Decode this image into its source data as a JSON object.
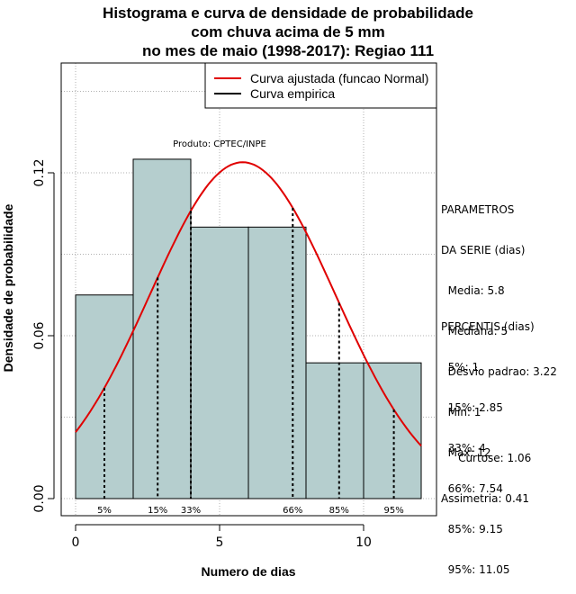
{
  "title_lines": [
    "Histograma e curva de densidade de probabilidade",
    "com chuva acima de 5 mm",
    "no mes de maio (1998-2017): Regiao 111"
  ],
  "legend": [
    "Curva ajustada (funcao Normal)",
    "Curva empirica"
  ],
  "product_label": "Produto: CPTEC/INPE",
  "params": {
    "header": [
      "PARAMETROS",
      "DA SERIE (dias)"
    ],
    "lines": [
      "  Media: 5.8",
      "  Mediana: 5",
      "  Desvio padrao: 3.22",
      "  Min: 1",
      "  Max: 12"
    ]
  },
  "percentis": {
    "header": "PERCENTIS (dias)",
    "lines": [
      "  5%: 1",
      "  15%: 2.85",
      "  33%: 4",
      "  66%: 7.54",
      "  85%: 9.15",
      "  95%: 11.05"
    ]
  },
  "shape": {
    "lines": [
      "     Curtose: 1.06",
      "Assimetria: 0.41"
    ]
  },
  "colors": {
    "bar_fill": "#b5cece",
    "fitted_curve": "#e00000",
    "empirical_curve": "#000000",
    "grid": "#b0b0b0"
  },
  "chart_data": {
    "type": "bar",
    "xlabel": "Numero de dias",
    "ylabel": "Densidade de probabilidade",
    "xlim": [
      -0.5,
      12.5
    ],
    "ylim": [
      -0.005,
      0.16
    ],
    "x_ticks": [
      0,
      5,
      10
    ],
    "y_ticks": [
      0.0,
      0.06,
      0.12
    ],
    "y_tick_labels": [
      "0.00",
      "0.06",
      "0.12"
    ],
    "grid": true,
    "legend_position": "top-right",
    "bins": [
      {
        "start": 0,
        "end": 2,
        "density": 0.075
      },
      {
        "start": 2,
        "end": 4,
        "density": 0.125
      },
      {
        "start": 4,
        "end": 6,
        "density": 0.1
      },
      {
        "start": 6,
        "end": 8,
        "density": 0.1
      },
      {
        "start": 8,
        "end": 10,
        "density": 0.05
      },
      {
        "start": 10,
        "end": 12,
        "density": 0.05
      }
    ],
    "fitted_normal": {
      "mean": 5.8,
      "sd": 3.22
    },
    "percentiles": [
      {
        "label": "5%",
        "x": 1
      },
      {
        "label": "15%",
        "x": 2.85
      },
      {
        "label": "33%",
        "x": 4
      },
      {
        "label": "66%",
        "x": 7.54
      },
      {
        "label": "85%",
        "x": 9.15
      },
      {
        "label": "95%",
        "x": 11.05
      }
    ]
  }
}
